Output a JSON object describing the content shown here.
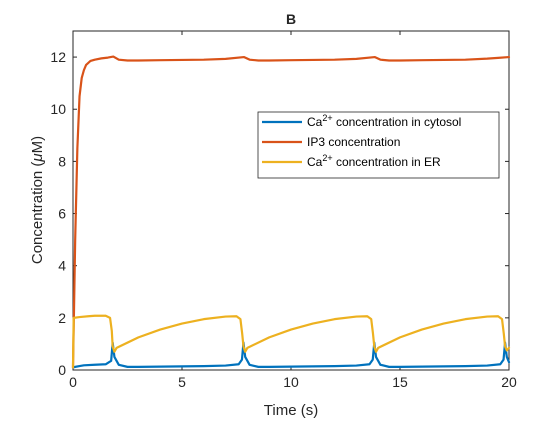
{
  "chart_data": {
    "type": "line",
    "title": "B",
    "xlabel": "Time (s)",
    "ylabel_parts": [
      "Concentration (",
      "μ",
      "M)"
    ],
    "xlim": [
      0,
      20
    ],
    "ylim": [
      0,
      13
    ],
    "xticks": [
      0,
      5,
      10,
      15,
      20
    ],
    "yticks": [
      0,
      2,
      4,
      6,
      8,
      10,
      12
    ],
    "grid": false,
    "legend_position": "top-right",
    "series": [
      {
        "name": "Ca2+ concentration in cytosol",
        "legend_parts": {
          "pre": "Ca",
          "sup": "2+",
          "post": " concentration in cytosol"
        },
        "color": "#0072BD",
        "x": [
          0,
          0.1,
          0.3,
          0.5,
          1.0,
          1.5,
          1.75,
          1.82,
          1.9,
          2.1,
          2.5,
          3,
          4,
          5,
          6,
          7,
          7.6,
          7.75,
          7.82,
          7.9,
          8.1,
          8.5,
          9,
          10,
          11,
          12,
          13,
          13.6,
          13.75,
          13.82,
          13.9,
          14.1,
          14.5,
          15,
          16,
          17,
          18,
          19,
          19.6,
          19.75,
          19.82,
          19.9,
          20.0
        ],
        "y": [
          0.1,
          0.12,
          0.15,
          0.18,
          0.2,
          0.22,
          0.35,
          1.05,
          0.5,
          0.2,
          0.12,
          0.12,
          0.13,
          0.14,
          0.15,
          0.17,
          0.22,
          0.4,
          1.05,
          0.5,
          0.2,
          0.12,
          0.12,
          0.13,
          0.14,
          0.15,
          0.17,
          0.22,
          0.4,
          1.05,
          0.5,
          0.2,
          0.12,
          0.12,
          0.13,
          0.14,
          0.15,
          0.17,
          0.22,
          0.4,
          1.05,
          0.5,
          0.3
        ]
      },
      {
        "name": "IP3 concentration",
        "legend_parts": {
          "pre": "IP3 concentration",
          "sup": "",
          "post": ""
        },
        "color": "#D95319",
        "x": [
          0,
          0.05,
          0.1,
          0.2,
          0.3,
          0.4,
          0.5,
          0.6,
          0.8,
          1.0,
          1.3,
          1.6,
          1.85,
          2.1,
          2.5,
          3,
          4,
          5,
          6,
          7,
          7.85,
          8.1,
          8.5,
          9,
          10,
          11,
          12,
          13,
          13.85,
          14.1,
          14.5,
          15,
          16,
          17,
          18,
          19,
          19.5,
          20
        ],
        "y": [
          0.1,
          2.5,
          5.0,
          8.5,
          10.5,
          11.2,
          11.5,
          11.7,
          11.85,
          11.9,
          11.95,
          11.98,
          12.02,
          11.9,
          11.87,
          11.87,
          11.88,
          11.89,
          11.9,
          11.93,
          12.0,
          11.9,
          11.87,
          11.87,
          11.88,
          11.89,
          11.9,
          11.93,
          12.0,
          11.9,
          11.87,
          11.87,
          11.88,
          11.89,
          11.9,
          11.94,
          11.97,
          12.0
        ]
      },
      {
        "name": "Ca2+ concentration in ER",
        "legend_parts": {
          "pre": "Ca",
          "sup": "2+",
          "post": " concentration in ER"
        },
        "color": "#EDB120",
        "x": [
          0,
          0.03,
          0.3,
          0.7,
          1.0,
          1.5,
          1.7,
          1.78,
          1.82,
          1.9,
          2.0,
          3,
          4,
          5,
          6,
          7,
          7.5,
          7.68,
          7.76,
          7.82,
          7.9,
          8.0,
          9,
          10,
          11,
          12,
          13,
          13.5,
          13.68,
          13.76,
          13.82,
          13.9,
          14.0,
          15,
          16,
          17,
          18,
          19,
          19.5,
          19.68,
          19.76,
          19.82,
          19.9,
          20.0
        ],
        "y": [
          0.1,
          2.0,
          2.03,
          2.06,
          2.08,
          2.08,
          2.0,
          1.5,
          0.9,
          0.7,
          0.85,
          1.25,
          1.55,
          1.78,
          1.95,
          2.05,
          2.06,
          1.95,
          1.4,
          0.9,
          0.7,
          0.85,
          1.25,
          1.55,
          1.78,
          1.95,
          2.05,
          2.06,
          1.95,
          1.4,
          0.9,
          0.7,
          0.85,
          1.25,
          1.55,
          1.78,
          1.95,
          2.05,
          2.06,
          1.95,
          1.4,
          0.9,
          0.75,
          0.85
        ]
      }
    ]
  }
}
